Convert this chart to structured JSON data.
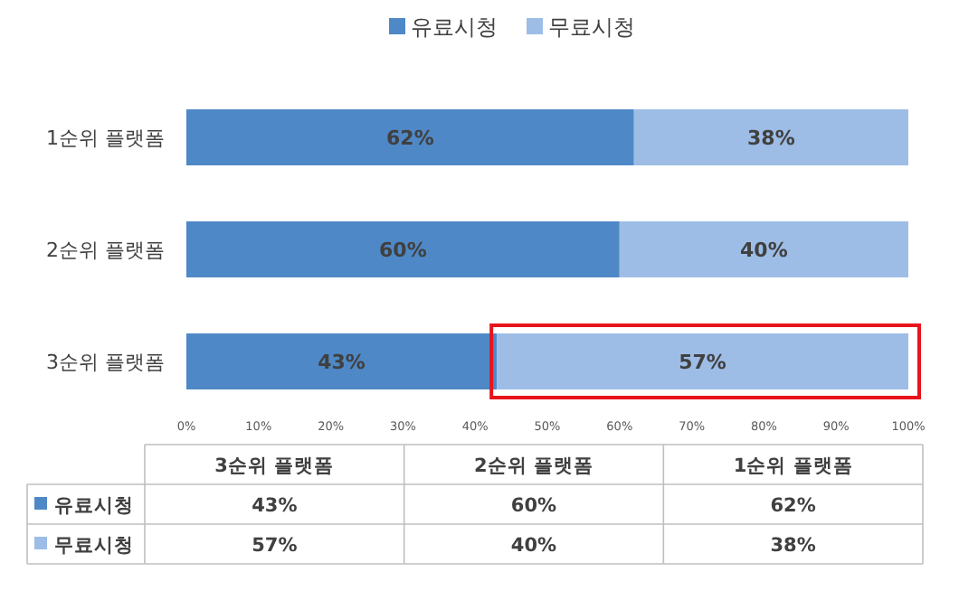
{
  "chart_data": {
    "type": "bar",
    "orientation": "horizontal",
    "stacked": true,
    "categories": [
      "1순위 플랫폼",
      "2순위 플랫폼",
      "3순위 플랫폼"
    ],
    "series": [
      {
        "name": "유료시청",
        "color": "#4f88c6",
        "values": [
          62,
          60,
          43
        ],
        "value_labels": [
          "62%",
          "60%",
          "43%"
        ]
      },
      {
        "name": "무료시청",
        "color": "#9dbde6",
        "values": [
          38,
          40,
          57
        ],
        "value_labels": [
          "38%",
          "40%",
          "57%"
        ]
      }
    ],
    "xlim": [
      0,
      100
    ],
    "xticks": [
      {
        "value": 0,
        "label": "0%"
      },
      {
        "value": 10,
        "label": "10%"
      },
      {
        "value": 20,
        "label": "20%"
      },
      {
        "value": 30,
        "label": "30%"
      },
      {
        "value": 40,
        "label": "40%"
      },
      {
        "value": 50,
        "label": "50%"
      },
      {
        "value": 60,
        "label": "60%"
      },
      {
        "value": 70,
        "label": "70%"
      },
      {
        "value": 80,
        "label": "80%"
      },
      {
        "value": 90,
        "label": "90%"
      },
      {
        "value": 100,
        "label": "100%"
      }
    ],
    "legend": "top",
    "grid": false
  }
}
